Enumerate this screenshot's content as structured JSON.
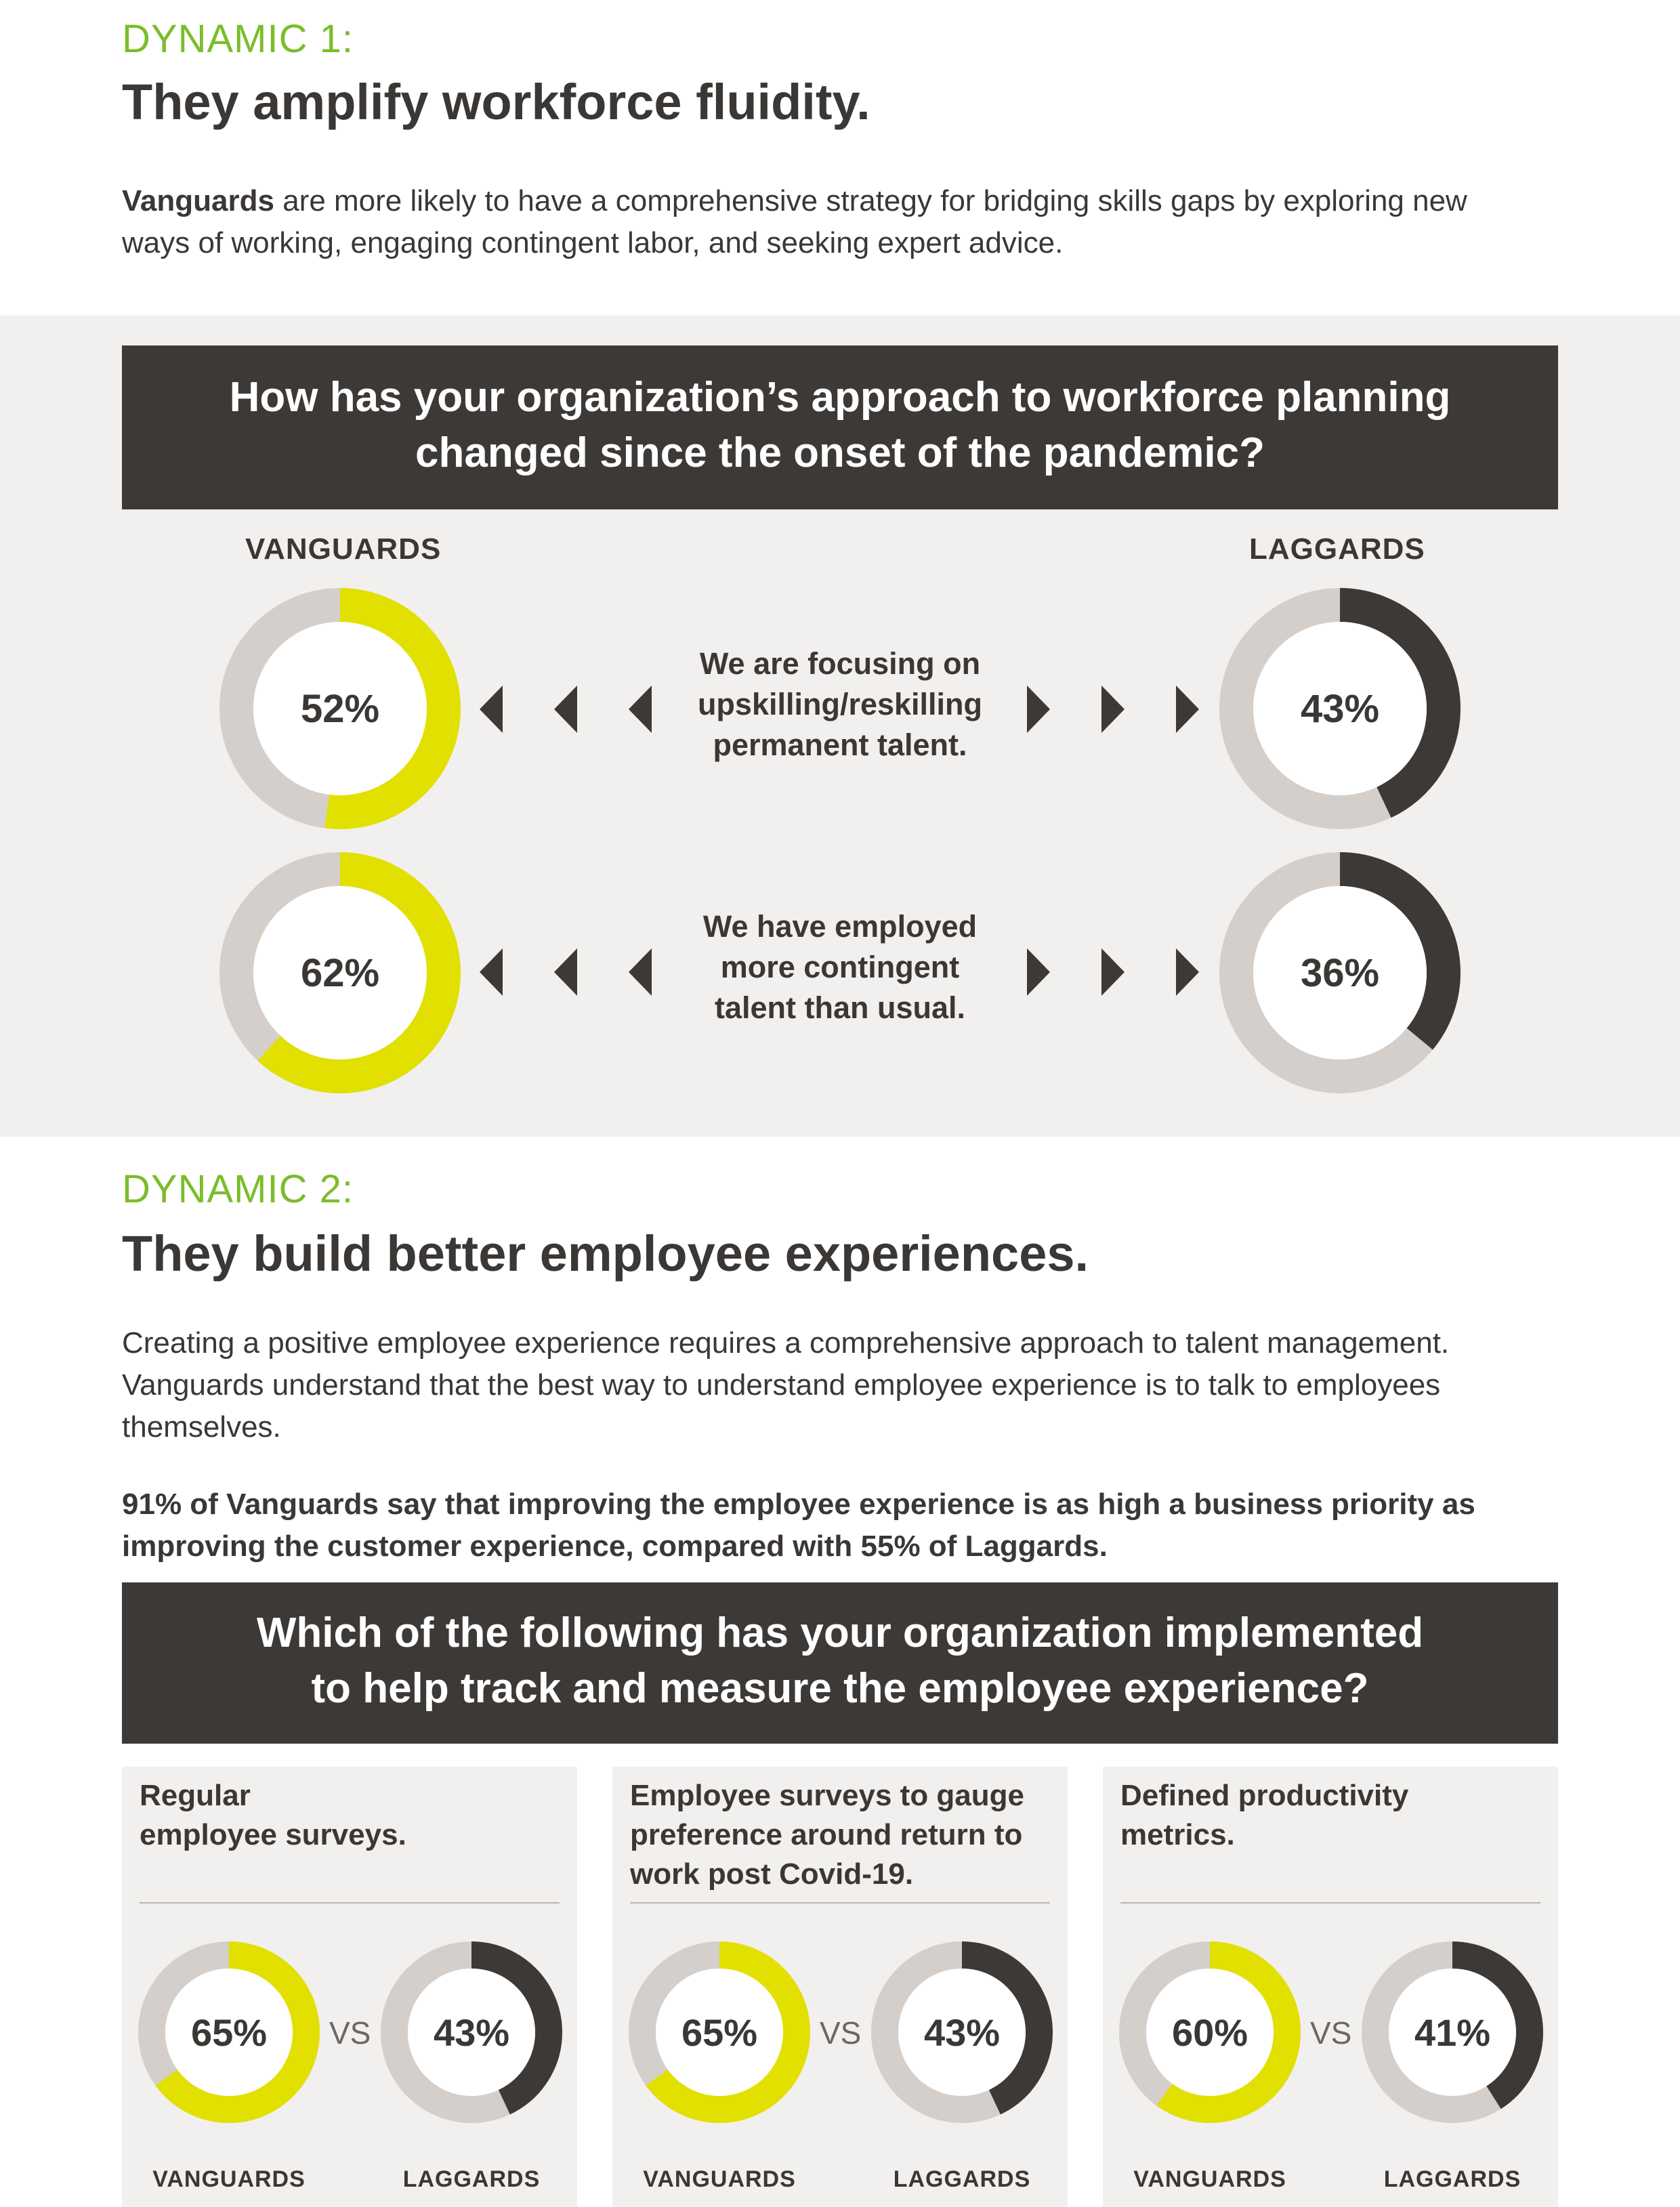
{
  "dynamic1": {
    "label": "DYNAMIC 1:",
    "heading": "They amplify workforce fluidity.",
    "intro_bold": "Vanguards",
    "intro_rest": " are more likely to have a comprehensive strategy for bridging skills gaps by exploring new ways of working, engaging contingent labor, and seeking expert advice.",
    "question_line1": "How has your organization’s approach to workforce planning",
    "question_line2": "changed since the onset of the pandemic?",
    "left_label": "VANGUARDS",
    "right_label": "LAGGARDS",
    "rows": [
      {
        "text_lines": [
          "We are focusing on",
          "upskilling/reskilling",
          "permanent talent."
        ],
        "vanguards_label": "52%",
        "vanguards_value": 52,
        "laggards_label": "43%",
        "laggards_value": 43
      },
      {
        "text_lines": [
          "We have employed",
          "more contingent",
          "talent than usual."
        ],
        "vanguards_label": "62%",
        "vanguards_value": 62,
        "laggards_label": "36%",
        "laggards_value": 36
      }
    ]
  },
  "dynamic2": {
    "label": "DYNAMIC 2:",
    "heading": "They build better employee experiences.",
    "intro": "Creating a positive employee experience requires a comprehensive approach to talent management.  Vanguards understand that the best way to understand employee experience is to talk to employees themselves.",
    "stat": "91% of Vanguards say that improving the employee experience is as high a business priority as improving the customer experience, compared with 55% of Laggards.",
    "question_line1": "Which of the following has your organization implemented",
    "question_line2": "to help track and measure the employee experience?",
    "vs_label": "VS",
    "vanguards_label": "VANGUARDS",
    "laggards_label": "LAGGARDS",
    "cards": [
      {
        "title_lines": [
          "Regular",
          "employee surveys."
        ],
        "vanguards_label": "65%",
        "vanguards_value": 65,
        "laggards_label": "43%",
        "laggards_value": 43
      },
      {
        "title_lines": [
          "Employee surveys to gauge",
          "preference around return to",
          "work post Covid-19."
        ],
        "vanguards_label": "65%",
        "vanguards_value": 65,
        "laggards_label": "43%",
        "laggards_value": 43
      },
      {
        "title_lines": [
          "Defined productivity",
          "metrics."
        ],
        "vanguards_label": "60%",
        "vanguards_value": 60,
        "laggards_label": "41%",
        "laggards_value": 41
      }
    ]
  },
  "colors": {
    "vanguards": "#e2e000",
    "laggards": "#3c3937",
    "track": "#d4cfca",
    "accent_green": "#7bbd2a"
  },
  "icons": {
    "left_arrow": "triangle-left-icon",
    "right_arrow": "triangle-right-icon"
  }
}
